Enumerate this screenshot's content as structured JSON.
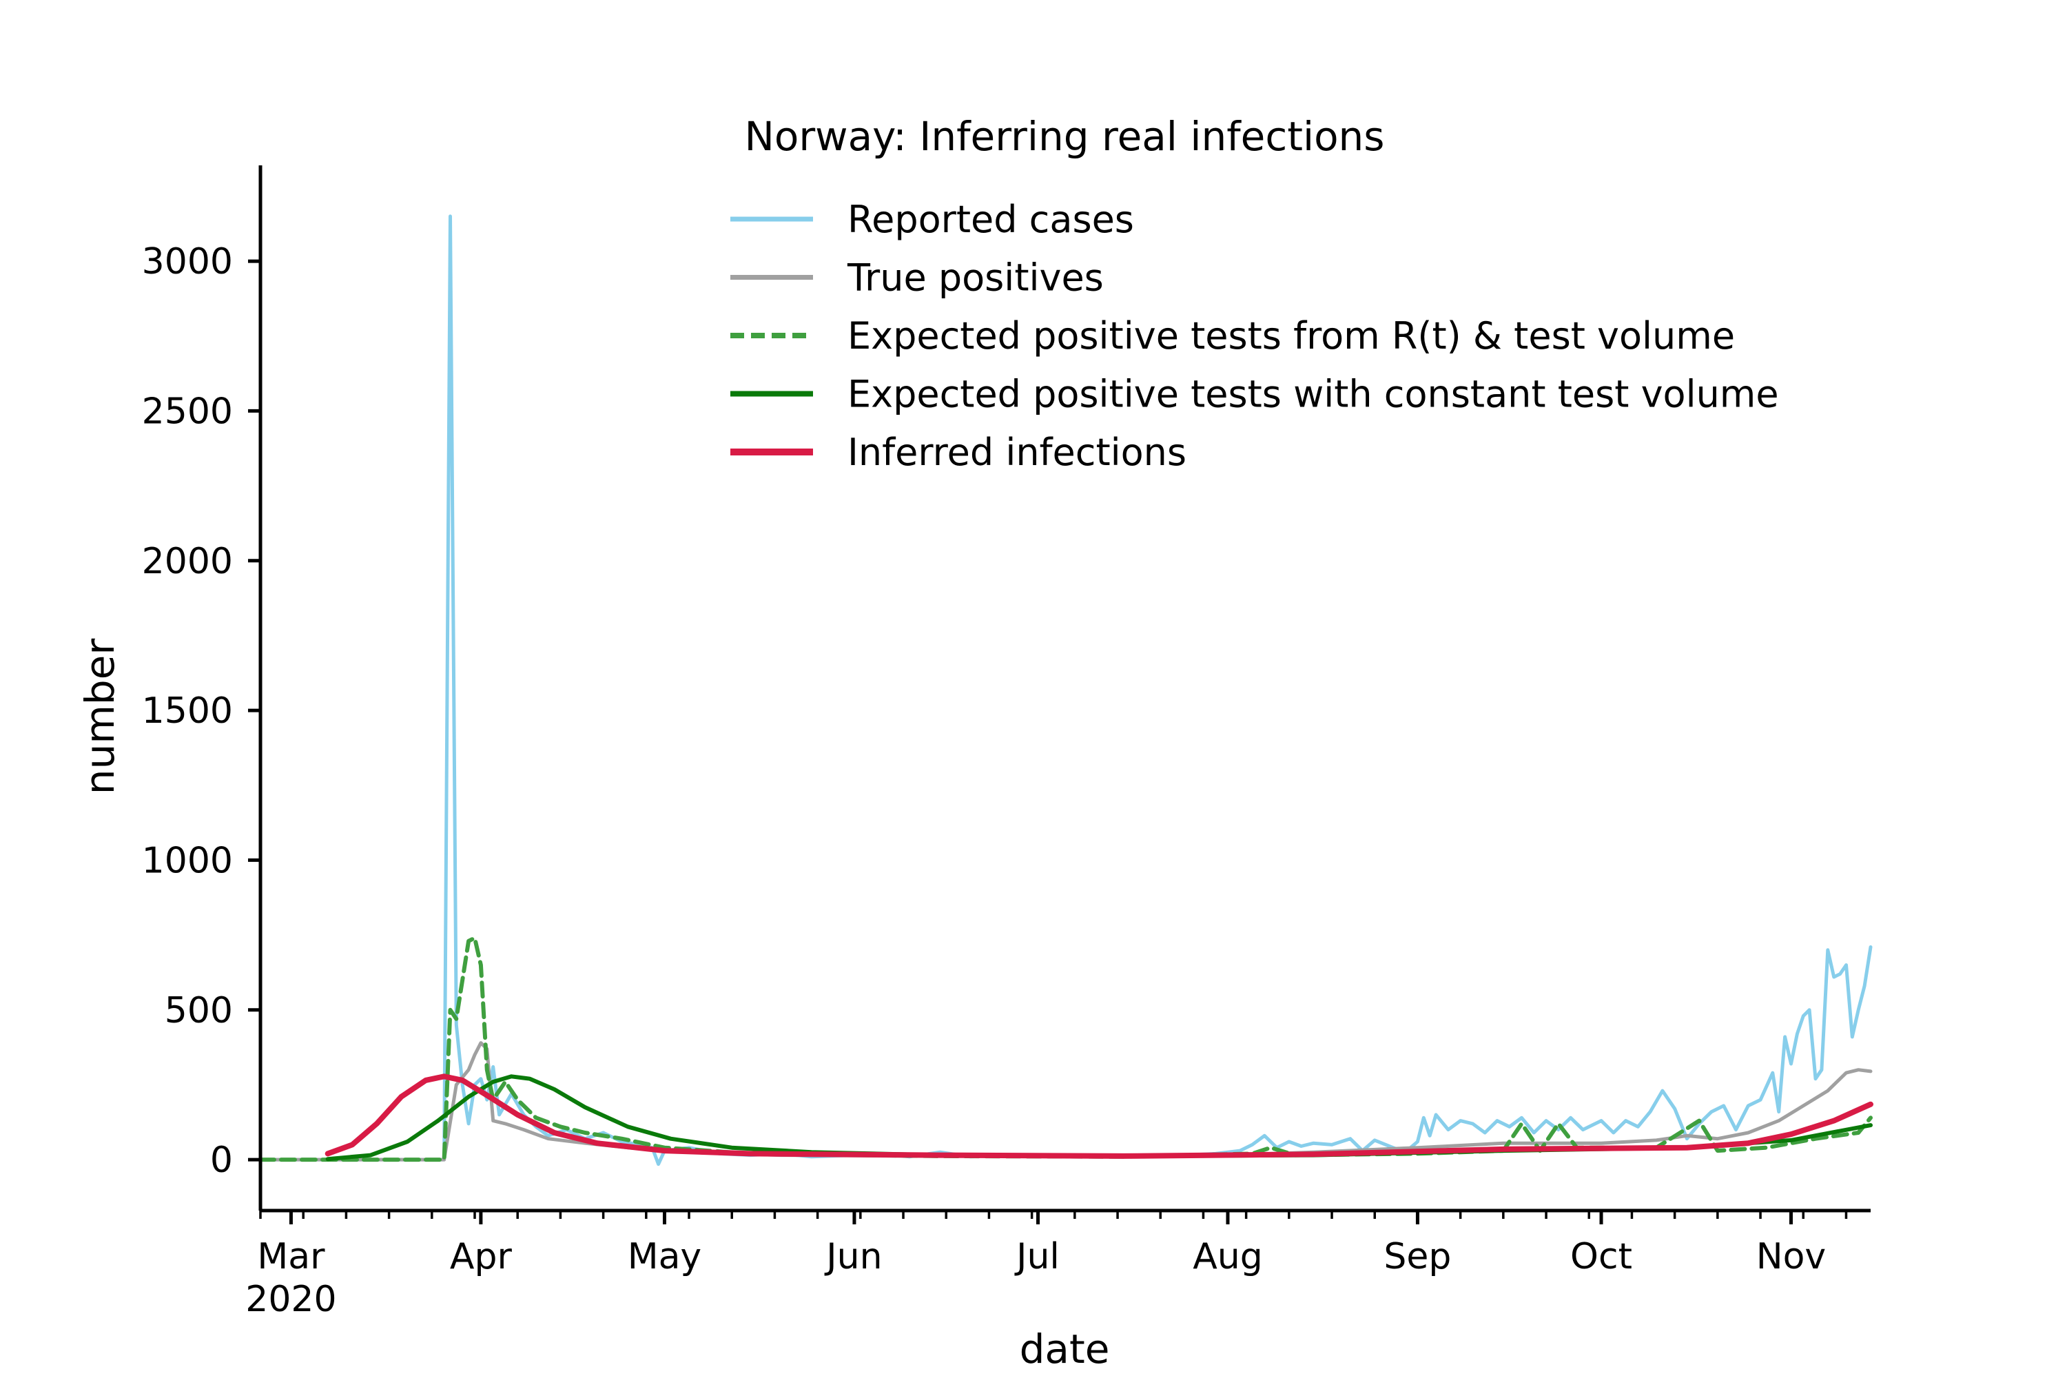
{
  "chart_data": {
    "type": "line",
    "title": "Norway: Inferring real infections",
    "xlabel": "date",
    "ylabel": "number",
    "ylim": [
      -170,
      3320
    ],
    "xlim": [
      "2020-02-25",
      "2020-11-14"
    ],
    "yticks": [
      0,
      500,
      1000,
      1500,
      2000,
      2500,
      3000
    ],
    "xticks": [
      {
        "date": "2020-03-01",
        "label": "Mar",
        "sublabel": "2020"
      },
      {
        "date": "2020-04-01",
        "label": "Apr"
      },
      {
        "date": "2020-05-01",
        "label": "May"
      },
      {
        "date": "2020-06-01",
        "label": "Jun"
      },
      {
        "date": "2020-07-01",
        "label": "Jul"
      },
      {
        "date": "2020-08-01",
        "label": "Aug"
      },
      {
        "date": "2020-09-01",
        "label": "Sep"
      },
      {
        "date": "2020-10-01",
        "label": "Oct"
      },
      {
        "date": "2020-11-01",
        "label": "Nov"
      }
    ],
    "grid": false,
    "legend_position": "top-center",
    "series": [
      {
        "name": "Reported cases",
        "color": "#87ceeb",
        "style": "solid",
        "points": [
          [
            "2020-02-25",
            0
          ],
          [
            "2020-03-10",
            0
          ],
          [
            "2020-03-26",
            0
          ],
          [
            "2020-03-27",
            3150
          ],
          [
            "2020-03-28",
            450
          ],
          [
            "2020-03-29",
            250
          ],
          [
            "2020-03-30",
            120
          ],
          [
            "2020-03-31",
            250
          ],
          [
            "2020-04-01",
            270
          ],
          [
            "2020-04-02",
            200
          ],
          [
            "2020-04-03",
            310
          ],
          [
            "2020-04-04",
            150
          ],
          [
            "2020-04-06",
            220
          ],
          [
            "2020-04-08",
            150
          ],
          [
            "2020-04-10",
            110
          ],
          [
            "2020-04-12",
            80
          ],
          [
            "2020-04-15",
            100
          ],
          [
            "2020-04-18",
            70
          ],
          [
            "2020-04-21",
            90
          ],
          [
            "2020-04-24",
            60
          ],
          [
            "2020-04-27",
            50
          ],
          [
            "2020-04-29",
            40
          ],
          [
            "2020-04-30",
            -15
          ],
          [
            "2020-05-01",
            30
          ],
          [
            "2020-05-05",
            40
          ],
          [
            "2020-05-10",
            20
          ],
          [
            "2020-05-15",
            15
          ],
          [
            "2020-05-20",
            20
          ],
          [
            "2020-05-25",
            10
          ],
          [
            "2020-06-01",
            15
          ],
          [
            "2020-06-05",
            20
          ],
          [
            "2020-06-10",
            10
          ],
          [
            "2020-06-15",
            25
          ],
          [
            "2020-06-20",
            10
          ],
          [
            "2020-06-25",
            15
          ],
          [
            "2020-07-01",
            10
          ],
          [
            "2020-07-05",
            15
          ],
          [
            "2020-07-10",
            10
          ],
          [
            "2020-07-15",
            15
          ],
          [
            "2020-07-20",
            10
          ],
          [
            "2020-07-25",
            15
          ],
          [
            "2020-07-30",
            20
          ],
          [
            "2020-08-03",
            30
          ],
          [
            "2020-08-05",
            50
          ],
          [
            "2020-08-07",
            80
          ],
          [
            "2020-08-09",
            40
          ],
          [
            "2020-08-11",
            60
          ],
          [
            "2020-08-13",
            45
          ],
          [
            "2020-08-15",
            55
          ],
          [
            "2020-08-18",
            50
          ],
          [
            "2020-08-21",
            70
          ],
          [
            "2020-08-23",
            30
          ],
          [
            "2020-08-25",
            65
          ],
          [
            "2020-08-28",
            40
          ],
          [
            "2020-08-30",
            25
          ],
          [
            "2020-09-01",
            60
          ],
          [
            "2020-09-02",
            140
          ],
          [
            "2020-09-03",
            80
          ],
          [
            "2020-09-04",
            150
          ],
          [
            "2020-09-06",
            100
          ],
          [
            "2020-09-08",
            130
          ],
          [
            "2020-09-10",
            120
          ],
          [
            "2020-09-12",
            90
          ],
          [
            "2020-09-14",
            130
          ],
          [
            "2020-09-16",
            110
          ],
          [
            "2020-09-18",
            140
          ],
          [
            "2020-09-20",
            90
          ],
          [
            "2020-09-22",
            130
          ],
          [
            "2020-09-24",
            100
          ],
          [
            "2020-09-26",
            140
          ],
          [
            "2020-09-28",
            100
          ],
          [
            "2020-10-01",
            130
          ],
          [
            "2020-10-03",
            90
          ],
          [
            "2020-10-05",
            130
          ],
          [
            "2020-10-07",
            110
          ],
          [
            "2020-10-09",
            160
          ],
          [
            "2020-10-11",
            230
          ],
          [
            "2020-10-13",
            170
          ],
          [
            "2020-10-15",
            70
          ],
          [
            "2020-10-17",
            120
          ],
          [
            "2020-10-19",
            160
          ],
          [
            "2020-10-21",
            180
          ],
          [
            "2020-10-23",
            100
          ],
          [
            "2020-10-25",
            180
          ],
          [
            "2020-10-27",
            200
          ],
          [
            "2020-10-29",
            290
          ],
          [
            "2020-10-30",
            160
          ],
          [
            "2020-10-31",
            410
          ],
          [
            "2020-11-01",
            320
          ],
          [
            "2020-11-02",
            420
          ],
          [
            "2020-11-03",
            480
          ],
          [
            "2020-11-04",
            500
          ],
          [
            "2020-11-05",
            270
          ],
          [
            "2020-11-06",
            300
          ],
          [
            "2020-11-07",
            700
          ],
          [
            "2020-11-08",
            610
          ],
          [
            "2020-11-09",
            620
          ],
          [
            "2020-11-10",
            650
          ],
          [
            "2020-11-11",
            410
          ],
          [
            "2020-11-12",
            500
          ],
          [
            "2020-11-13",
            580
          ],
          [
            "2020-11-14",
            710
          ]
        ]
      },
      {
        "name": "True positives",
        "color": "#a0a0a0",
        "style": "solid",
        "points": [
          [
            "2020-02-25",
            0
          ],
          [
            "2020-03-26",
            0
          ],
          [
            "2020-03-28",
            250
          ],
          [
            "2020-03-30",
            300
          ],
          [
            "2020-03-31",
            350
          ],
          [
            "2020-04-01",
            390
          ],
          [
            "2020-04-02",
            370
          ],
          [
            "2020-04-03",
            130
          ],
          [
            "2020-04-05",
            120
          ],
          [
            "2020-04-08",
            100
          ],
          [
            "2020-04-12",
            70
          ],
          [
            "2020-04-18",
            55
          ],
          [
            "2020-04-25",
            40
          ],
          [
            "2020-05-05",
            25
          ],
          [
            "2020-05-20",
            15
          ],
          [
            "2020-06-10",
            12
          ],
          [
            "2020-07-10",
            12
          ],
          [
            "2020-08-01",
            15
          ],
          [
            "2020-08-15",
            25
          ],
          [
            "2020-09-01",
            40
          ],
          [
            "2020-09-15",
            55
          ],
          [
            "2020-10-01",
            55
          ],
          [
            "2020-10-10",
            65
          ],
          [
            "2020-10-15",
            80
          ],
          [
            "2020-10-20",
            70
          ],
          [
            "2020-10-25",
            90
          ],
          [
            "2020-10-30",
            130
          ],
          [
            "2020-11-03",
            180
          ],
          [
            "2020-11-07",
            230
          ],
          [
            "2020-11-10",
            290
          ],
          [
            "2020-11-12",
            300
          ],
          [
            "2020-11-14",
            295
          ]
        ]
      },
      {
        "name": "Expected positive tests from R(t) & test volume",
        "color": "#3f9f3f",
        "style": "dashed",
        "points": [
          [
            "2020-02-25",
            0
          ],
          [
            "2020-03-26",
            0
          ],
          [
            "2020-03-27",
            500
          ],
          [
            "2020-03-28",
            470
          ],
          [
            "2020-03-29",
            600
          ],
          [
            "2020-03-30",
            730
          ],
          [
            "2020-03-31",
            740
          ],
          [
            "2020-04-01",
            650
          ],
          [
            "2020-04-02",
            300
          ],
          [
            "2020-04-03",
            200
          ],
          [
            "2020-04-05",
            260
          ],
          [
            "2020-04-07",
            200
          ],
          [
            "2020-04-10",
            140
          ],
          [
            "2020-04-14",
            110
          ],
          [
            "2020-04-18",
            90
          ],
          [
            "2020-04-24",
            70
          ],
          [
            "2020-05-01",
            40
          ],
          [
            "2020-05-15",
            20
          ],
          [
            "2020-06-15",
            12
          ],
          [
            "2020-07-15",
            10
          ],
          [
            "2020-08-05",
            20
          ],
          [
            "2020-08-08",
            40
          ],
          [
            "2020-08-12",
            15
          ],
          [
            "2020-09-01",
            20
          ],
          [
            "2020-09-15",
            30
          ],
          [
            "2020-09-18",
            120
          ],
          [
            "2020-09-21",
            30
          ],
          [
            "2020-09-24",
            120
          ],
          [
            "2020-09-27",
            40
          ],
          [
            "2020-10-10",
            40
          ],
          [
            "2020-10-17",
            130
          ],
          [
            "2020-10-20",
            30
          ],
          [
            "2020-10-28",
            40
          ],
          [
            "2020-11-05",
            70
          ],
          [
            "2020-11-12",
            90
          ],
          [
            "2020-11-14",
            140
          ]
        ]
      },
      {
        "name": "Expected positive tests with constant test volume",
        "color": "#0a7a0a",
        "style": "solid",
        "points": [
          [
            "2020-03-07",
            2
          ],
          [
            "2020-03-14",
            15
          ],
          [
            "2020-03-20",
            60
          ],
          [
            "2020-03-25",
            130
          ],
          [
            "2020-03-30",
            210
          ],
          [
            "2020-04-03",
            260
          ],
          [
            "2020-04-06",
            278
          ],
          [
            "2020-04-09",
            270
          ],
          [
            "2020-04-13",
            235
          ],
          [
            "2020-04-18",
            175
          ],
          [
            "2020-04-25",
            110
          ],
          [
            "2020-05-02",
            70
          ],
          [
            "2020-05-12",
            40
          ],
          [
            "2020-05-25",
            25
          ],
          [
            "2020-06-15",
            15
          ],
          [
            "2020-07-15",
            12
          ],
          [
            "2020-08-15",
            15
          ],
          [
            "2020-09-15",
            30
          ],
          [
            "2020-10-15",
            40
          ],
          [
            "2020-11-01",
            65
          ],
          [
            "2020-11-14",
            115
          ]
        ]
      },
      {
        "name": "Inferred infections",
        "color": "#d81b45",
        "style": "solid",
        "points": [
          [
            "2020-03-07",
            20
          ],
          [
            "2020-03-11",
            50
          ],
          [
            "2020-03-15",
            120
          ],
          [
            "2020-03-19",
            210
          ],
          [
            "2020-03-23",
            265
          ],
          [
            "2020-03-26",
            278
          ],
          [
            "2020-03-29",
            265
          ],
          [
            "2020-04-02",
            215
          ],
          [
            "2020-04-07",
            150
          ],
          [
            "2020-04-13",
            90
          ],
          [
            "2020-04-20",
            55
          ],
          [
            "2020-05-01",
            30
          ],
          [
            "2020-05-15",
            20
          ],
          [
            "2020-06-15",
            15
          ],
          [
            "2020-07-15",
            12
          ],
          [
            "2020-08-15",
            18
          ],
          [
            "2020-09-15",
            35
          ],
          [
            "2020-10-15",
            40
          ],
          [
            "2020-10-25",
            55
          ],
          [
            "2020-11-01",
            85
          ],
          [
            "2020-11-08",
            130
          ],
          [
            "2020-11-14",
            185
          ]
        ]
      }
    ]
  }
}
